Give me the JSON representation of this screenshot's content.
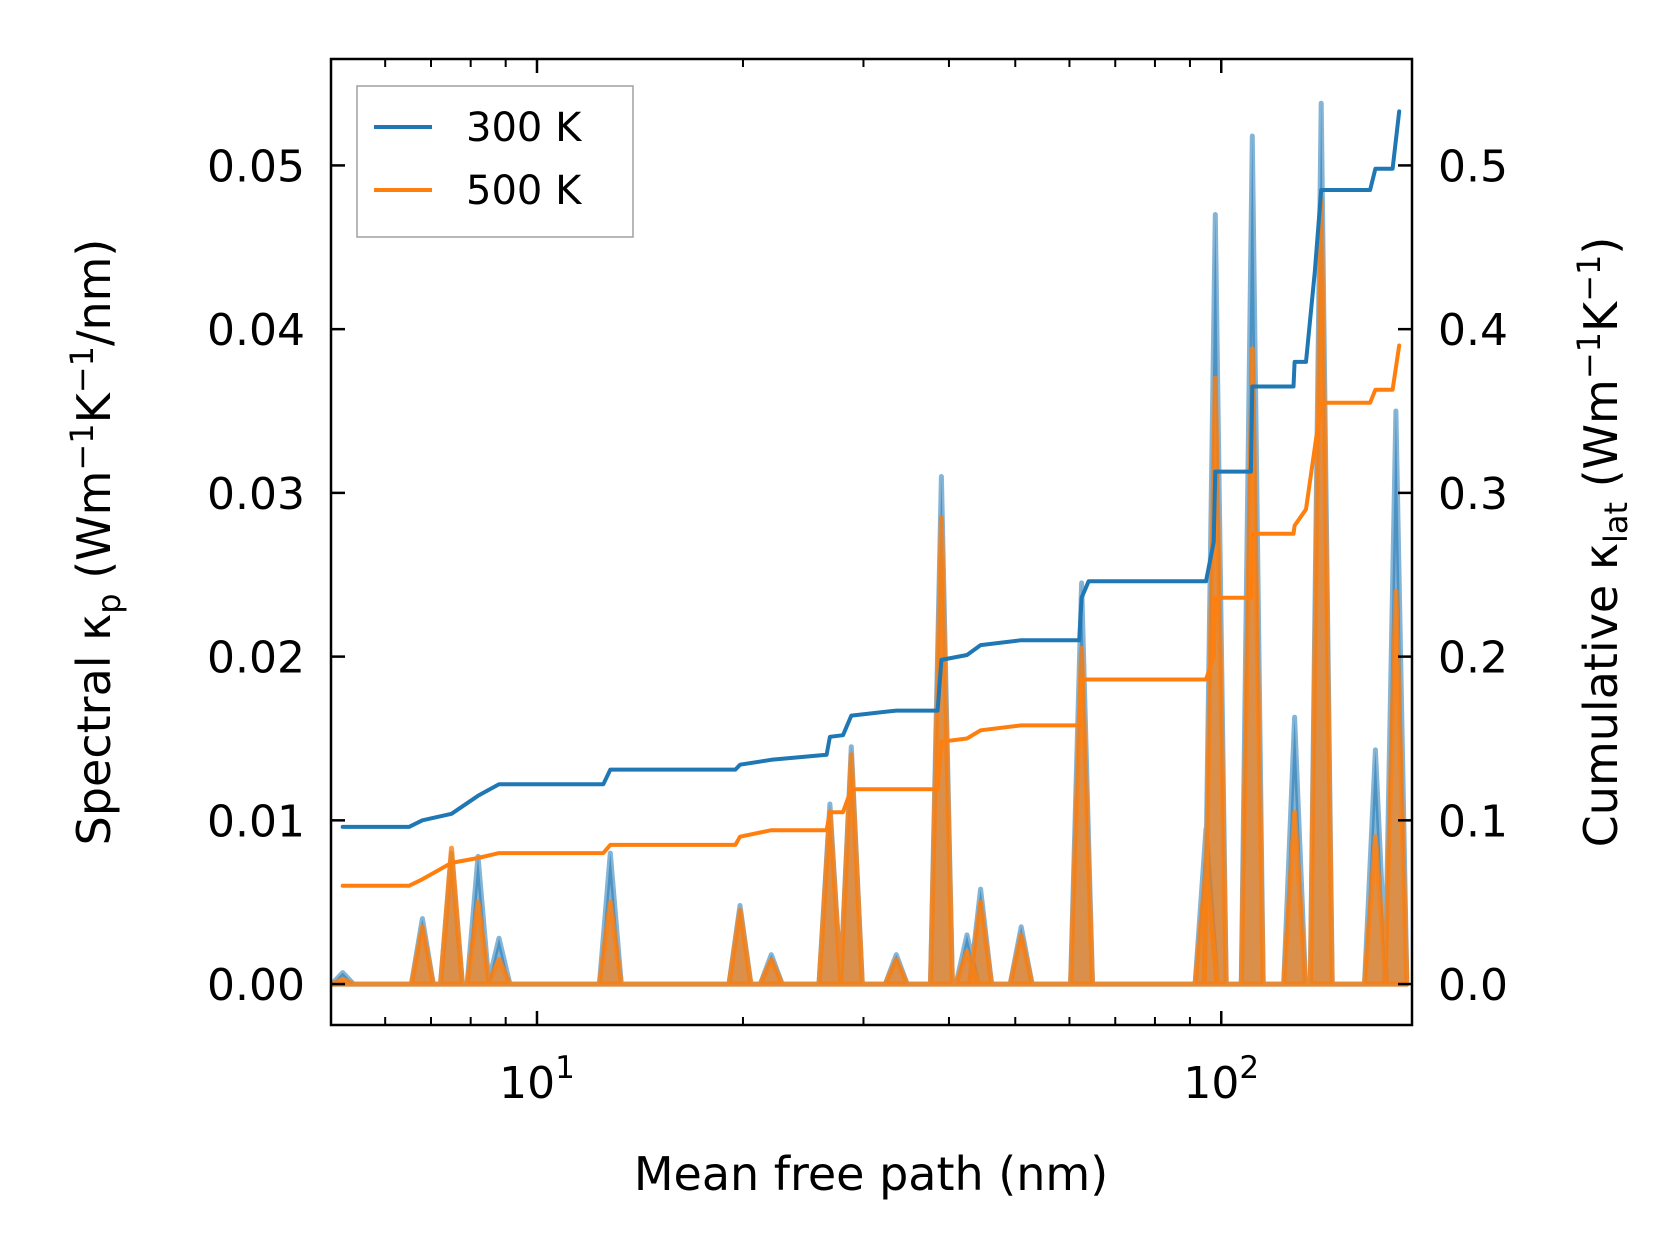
{
  "chart_data": {
    "type": "line",
    "xscale": "log",
    "xlim": [
      5.0,
      190.0
    ],
    "ylim_left": [
      -0.0025,
      0.0565
    ],
    "ylim_right": [
      -0.025,
      0.565
    ],
    "xlabel": "Mean free path (nm)",
    "ylabel_left": {
      "main": "Spectral κ",
      "sub": "p",
      "units": " (Wm",
      "e1": "−1",
      "mid": "K",
      "e2": "−1",
      "end": "/nm)"
    },
    "ylabel_right": {
      "main": "Cumulative κ",
      "sub": "lat",
      "units": " (Wm",
      "e1": "−1",
      "mid": "K",
      "e2": "−1",
      "end": ")"
    },
    "x_ticks": [
      {
        "value": 10,
        "base": "10",
        "exp": "1"
      },
      {
        "value": 100,
        "base": "10",
        "exp": "2"
      }
    ],
    "y_ticks_left": [
      "0.00",
      "0.01",
      "0.02",
      "0.03",
      "0.04",
      "0.05"
    ],
    "y_ticks_right": [
      "0.0",
      "0.1",
      "0.2",
      "0.3",
      "0.4",
      "0.5"
    ],
    "legend": {
      "position": "upper-left",
      "entries": [
        "300 K",
        "500 K"
      ]
    },
    "series": [
      {
        "name": "300 K",
        "color": "#1f77b4",
        "spectral_peaks": [
          [
            5.2,
            0.0007
          ],
          [
            6.8,
            0.004
          ],
          [
            7.5,
            0.008
          ],
          [
            8.2,
            0.0078
          ],
          [
            8.8,
            0.0028
          ],
          [
            12.8,
            0.008
          ],
          [
            19.8,
            0.0048
          ],
          [
            22.0,
            0.0018
          ],
          [
            26.8,
            0.011
          ],
          [
            28.8,
            0.0145
          ],
          [
            33.5,
            0.0018
          ],
          [
            39.0,
            0.031
          ],
          [
            42.5,
            0.003
          ],
          [
            44.5,
            0.0058
          ],
          [
            51.0,
            0.0035
          ],
          [
            62.5,
            0.0245
          ],
          [
            95.0,
            0.0095
          ],
          [
            98.0,
            0.047
          ],
          [
            111.0,
            0.0518
          ],
          [
            128.0,
            0.0163
          ],
          [
            140.0,
            0.0538
          ],
          [
            168.0,
            0.0143
          ],
          [
            180.0,
            0.035
          ]
        ],
        "cumulative": [
          [
            5.2,
            0.096
          ],
          [
            6.5,
            0.096
          ],
          [
            6.8,
            0.1
          ],
          [
            7.5,
            0.104
          ],
          [
            8.2,
            0.115
          ],
          [
            8.8,
            0.122
          ],
          [
            12.5,
            0.122
          ],
          [
            12.8,
            0.131
          ],
          [
            19.5,
            0.131
          ],
          [
            19.8,
            0.134
          ],
          [
            22.0,
            0.137
          ],
          [
            26.5,
            0.14
          ],
          [
            26.8,
            0.151
          ],
          [
            28.0,
            0.152
          ],
          [
            28.8,
            0.164
          ],
          [
            33.5,
            0.167
          ],
          [
            38.5,
            0.167
          ],
          [
            39.0,
            0.198
          ],
          [
            42.5,
            0.201
          ],
          [
            44.5,
            0.207
          ],
          [
            51.0,
            0.21
          ],
          [
            62.0,
            0.21
          ],
          [
            62.5,
            0.236
          ],
          [
            64.0,
            0.246
          ],
          [
            95.0,
            0.246
          ],
          [
            97.5,
            0.27
          ],
          [
            98.0,
            0.313
          ],
          [
            110.5,
            0.313
          ],
          [
            111.0,
            0.365
          ],
          [
            127.5,
            0.365
          ],
          [
            128.0,
            0.38
          ],
          [
            133.0,
            0.38
          ],
          [
            137.0,
            0.435
          ],
          [
            140.0,
            0.485
          ],
          [
            165.0,
            0.485
          ],
          [
            168.0,
            0.498
          ],
          [
            178.0,
            0.498
          ],
          [
            182.0,
            0.533
          ]
        ]
      },
      {
        "name": "500 K",
        "color": "#ff7f0e",
        "spectral_peaks": [
          [
            5.2,
            0.0003
          ],
          [
            6.8,
            0.0035
          ],
          [
            7.5,
            0.0083
          ],
          [
            8.2,
            0.005
          ],
          [
            8.8,
            0.0015
          ],
          [
            12.8,
            0.005
          ],
          [
            19.8,
            0.0045
          ],
          [
            22.0,
            0.0015
          ],
          [
            26.8,
            0.0105
          ],
          [
            28.8,
            0.014
          ],
          [
            33.5,
            0.0015
          ],
          [
            39.0,
            0.0285
          ],
          [
            42.5,
            0.002
          ],
          [
            44.5,
            0.005
          ],
          [
            51.0,
            0.003
          ],
          [
            62.5,
            0.0205
          ],
          [
            95.0,
            0.007
          ],
          [
            98.0,
            0.037
          ],
          [
            111.0,
            0.0388
          ],
          [
            128.0,
            0.0105
          ],
          [
            140.0,
            0.048
          ],
          [
            168.0,
            0.009
          ],
          [
            180.0,
            0.024
          ]
        ],
        "cumulative": [
          [
            5.2,
            0.06
          ],
          [
            6.5,
            0.06
          ],
          [
            6.8,
            0.064
          ],
          [
            7.5,
            0.074
          ],
          [
            8.2,
            0.077
          ],
          [
            8.8,
            0.08
          ],
          [
            12.5,
            0.08
          ],
          [
            12.8,
            0.085
          ],
          [
            19.5,
            0.085
          ],
          [
            19.8,
            0.09
          ],
          [
            22.0,
            0.094
          ],
          [
            26.5,
            0.094
          ],
          [
            26.8,
            0.105
          ],
          [
            28.0,
            0.105
          ],
          [
            28.8,
            0.119
          ],
          [
            38.5,
            0.119
          ],
          [
            39.0,
            0.148
          ],
          [
            42.5,
            0.15
          ],
          [
            44.5,
            0.155
          ],
          [
            51.0,
            0.158
          ],
          [
            62.0,
            0.158
          ],
          [
            62.5,
            0.186
          ],
          [
            95.0,
            0.186
          ],
          [
            97.5,
            0.2
          ],
          [
            98.0,
            0.236
          ],
          [
            110.5,
            0.236
          ],
          [
            111.0,
            0.275
          ],
          [
            127.5,
            0.275
          ],
          [
            128.0,
            0.28
          ],
          [
            133.0,
            0.29
          ],
          [
            140.0,
            0.355
          ],
          [
            165.0,
            0.355
          ],
          [
            168.0,
            0.363
          ],
          [
            178.0,
            0.363
          ],
          [
            182.0,
            0.39
          ]
        ]
      }
    ]
  }
}
